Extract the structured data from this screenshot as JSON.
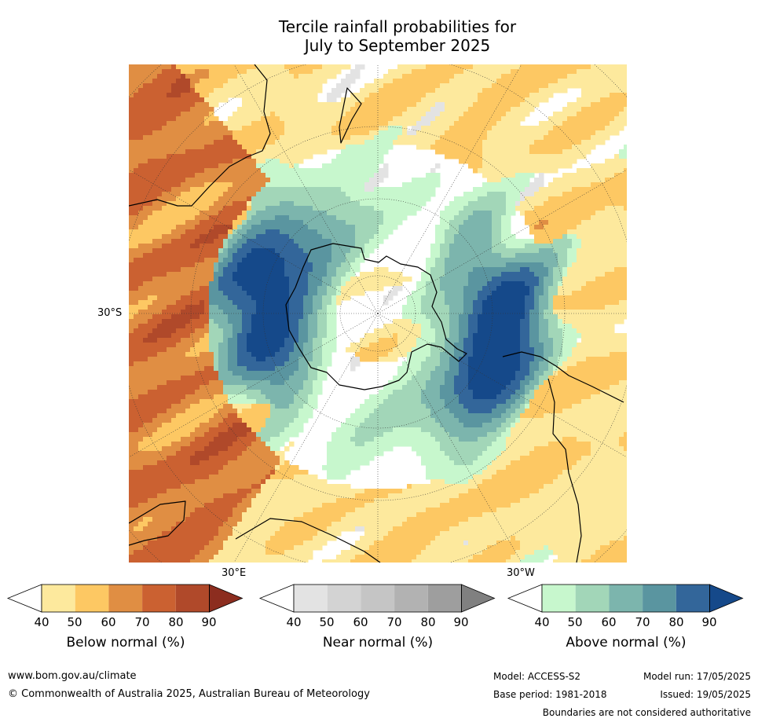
{
  "title": {
    "line1": "Tercile rainfall probabilities for",
    "line2": "July to September 2025"
  },
  "map": {
    "projection": "south-polar-stereographic",
    "lat_label": "30°S",
    "lon_labels": [
      "30°E",
      "30°W"
    ],
    "colors": {
      "below": [
        "#ffffff",
        "#fde99d",
        "#fdc863",
        "#e08e43",
        "#cb6131",
        "#b0492a",
        "#8c2d1f"
      ],
      "near": [
        "#ffffff",
        "#e3e3e3",
        "#d3d3d3",
        "#c5c5c5",
        "#b2b2b2",
        "#9e9e9e",
        "#808080"
      ],
      "above": [
        "#ffffff",
        "#c7f7cd",
        "#a2d6b8",
        "#7cb5ad",
        "#5a95a0",
        "#33669a",
        "#15498a"
      ]
    }
  },
  "colorbars": [
    {
      "id": "below",
      "label": "Below normal (%)",
      "ticks": [
        "40",
        "50",
        "60",
        "70",
        "80",
        "90"
      ]
    },
    {
      "id": "near",
      "label": "Near normal (%)",
      "ticks": [
        "40",
        "50",
        "60",
        "70",
        "80",
        "90"
      ]
    },
    {
      "id": "above",
      "label": "Above normal (%)",
      "ticks": [
        "40",
        "50",
        "60",
        "70",
        "80",
        "90"
      ]
    }
  ],
  "footer": {
    "website": "www.bom.gov.au/climate",
    "copyright": "© Commonwealth of Australia 2025, Australian Bureau of Meteorology",
    "model": "Model: ACCESS-S2",
    "model_run": "Model run: 17/05/2025",
    "base_period": "Base period: 1981-2018",
    "issued": "Issued: 19/05/2025",
    "disclaimer": "Boundaries are not considered authoritative"
  }
}
